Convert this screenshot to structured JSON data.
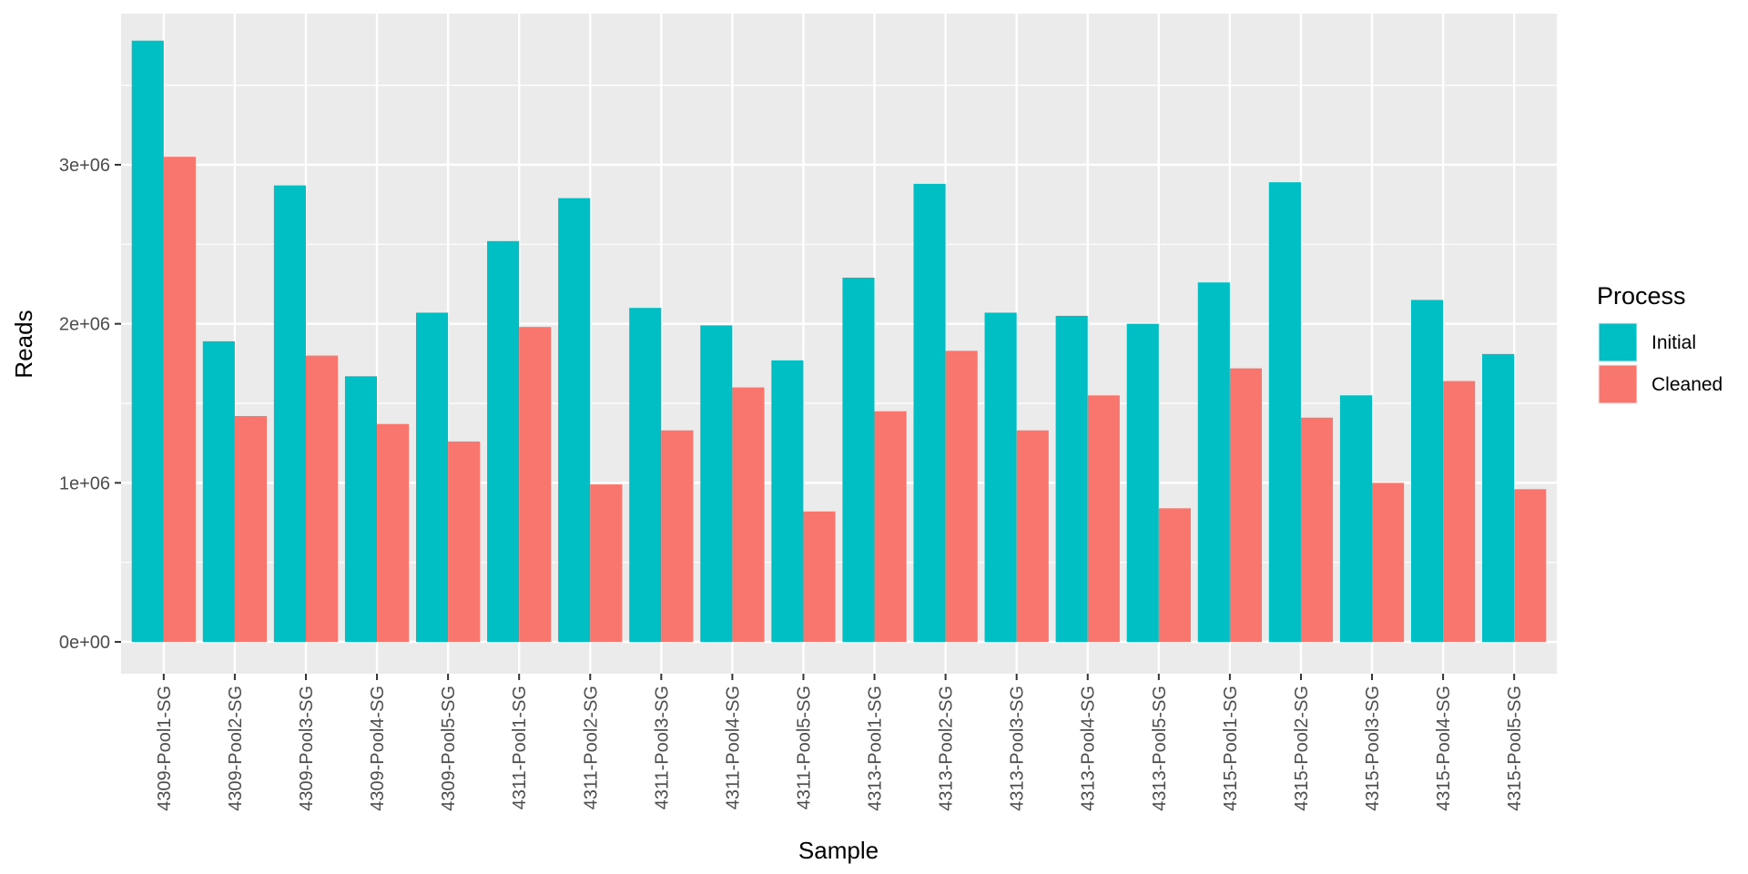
{
  "chart_data": {
    "type": "bar",
    "xlabel": "Sample",
    "ylabel": "Reads",
    "ylim": [
      -200000,
      3950000
    ],
    "yticks": [
      0,
      1000000,
      2000000,
      3000000
    ],
    "ytick_labels": [
      "0e+00",
      "1e+06",
      "2e+06",
      "3e+06"
    ],
    "grid": true,
    "legend": {
      "title": "Process",
      "position": "right"
    },
    "categories": [
      "4309-Pool1-SG",
      "4309-Pool2-SG",
      "4309-Pool3-SG",
      "4309-Pool4-SG",
      "4309-Pool5-SG",
      "4311-Pool1-SG",
      "4311-Pool2-SG",
      "4311-Pool3-SG",
      "4311-Pool4-SG",
      "4311-Pool5-SG",
      "4313-Pool1-SG",
      "4313-Pool2-SG",
      "4313-Pool3-SG",
      "4313-Pool4-SG",
      "4313-Pool5-SG",
      "4315-Pool1-SG",
      "4315-Pool2-SG",
      "4315-Pool3-SG",
      "4315-Pool4-SG",
      "4315-Pool5-SG"
    ],
    "series": [
      {
        "name": "Initial",
        "color": "#00BFC4",
        "values": [
          3780000,
          1890000,
          2870000,
          1670000,
          2070000,
          2520000,
          2790000,
          2100000,
          1990000,
          1770000,
          2290000,
          2880000,
          2070000,
          2050000,
          2000000,
          2260000,
          2890000,
          1550000,
          2150000,
          1810000
        ]
      },
      {
        "name": "Cleaned",
        "color": "#F8766D",
        "values": [
          3050000,
          1420000,
          1800000,
          1370000,
          1260000,
          1980000,
          990000,
          1330000,
          1600000,
          820000,
          1450000,
          1830000,
          1330000,
          1550000,
          840000,
          1720000,
          1410000,
          1000000,
          1640000,
          960000
        ]
      }
    ]
  }
}
